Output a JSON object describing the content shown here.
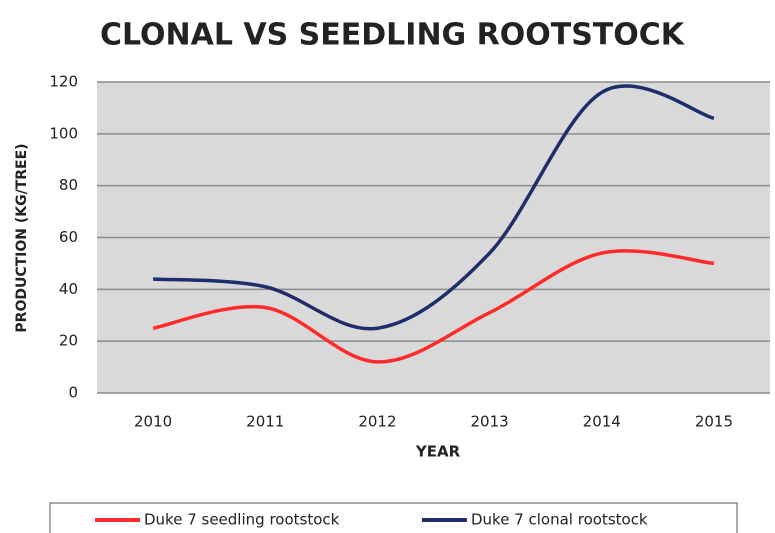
{
  "chart_data": {
    "type": "line",
    "title": "CLONAL VS SEEDLING ROOTSTOCK",
    "x_label": "YEAR",
    "y_label": "PRODUCTION (KG/TREE)",
    "categories": [
      "2010",
      "2011",
      "2012",
      "2013",
      "2014",
      "2015"
    ],
    "series": [
      {
        "name": "Duke 7 seedling rootstock",
        "color": "#ff2b2b",
        "values": [
          25,
          33,
          12,
          31,
          54,
          50
        ]
      },
      {
        "name": "Duke 7 clonal rootstock",
        "color": "#1f2d6b",
        "values": [
          44,
          41,
          25,
          54,
          116,
          106
        ]
      }
    ],
    "ylim": [
      0,
      120
    ],
    "yticks": [
      0,
      20,
      40,
      60,
      80,
      100,
      120
    ],
    "grid": true,
    "smooth": true,
    "legend": "bottom"
  }
}
